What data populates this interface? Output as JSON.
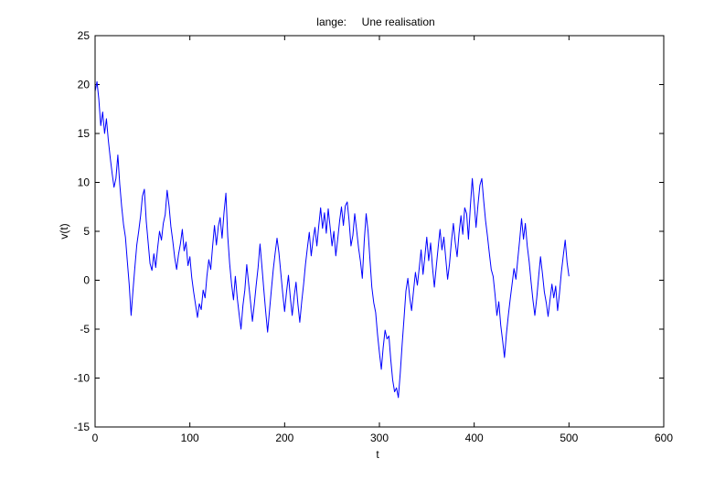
{
  "chart_data": {
    "type": "line",
    "title": "lange:     Une realisation",
    "xlabel": "t",
    "ylabel": "v(t)",
    "xlim": [
      0,
      600
    ],
    "ylim": [
      -15,
      25
    ],
    "xticks": [
      0,
      100,
      200,
      300,
      400,
      500,
      600
    ],
    "yticks": [
      -15,
      -10,
      -5,
      0,
      5,
      10,
      15,
      20,
      25
    ],
    "grid": false,
    "legend": "none",
    "line_color": "#0000ff",
    "series": [
      {
        "name": "",
        "points": [
          [
            0,
            19.3
          ],
          [
            2,
            20.3
          ],
          [
            4,
            18.5
          ],
          [
            6,
            15.8
          ],
          [
            8,
            17.2
          ],
          [
            10,
            15.0
          ],
          [
            12,
            16.5
          ],
          [
            14,
            14.3
          ],
          [
            16,
            12.5
          ],
          [
            18,
            10.9
          ],
          [
            20,
            9.5
          ],
          [
            22,
            10.4
          ],
          [
            24,
            12.8
          ],
          [
            26,
            9.8
          ],
          [
            28,
            7.6
          ],
          [
            30,
            5.7
          ],
          [
            32,
            4.4
          ],
          [
            34,
            2.0
          ],
          [
            36,
            -0.4
          ],
          [
            38,
            -3.6
          ],
          [
            40,
            -1.0
          ],
          [
            42,
            1.3
          ],
          [
            44,
            3.6
          ],
          [
            46,
            5.0
          ],
          [
            48,
            6.6
          ],
          [
            50,
            8.6
          ],
          [
            52,
            9.3
          ],
          [
            54,
            6.0
          ],
          [
            56,
            3.8
          ],
          [
            58,
            1.7
          ],
          [
            60,
            1.0
          ],
          [
            62,
            2.7
          ],
          [
            64,
            1.3
          ],
          [
            66,
            3.3
          ],
          [
            68,
            5.0
          ],
          [
            70,
            4.1
          ],
          [
            72,
            5.8
          ],
          [
            74,
            6.7
          ],
          [
            76,
            9.2
          ],
          [
            78,
            7.6
          ],
          [
            80,
            5.5
          ],
          [
            82,
            4.0
          ],
          [
            84,
            2.3
          ],
          [
            86,
            1.1
          ],
          [
            88,
            2.6
          ],
          [
            90,
            3.7
          ],
          [
            92,
            5.2
          ],
          [
            94,
            3.0
          ],
          [
            96,
            3.9
          ],
          [
            98,
            1.5
          ],
          [
            100,
            2.4
          ],
          [
            102,
            0.3
          ],
          [
            104,
            -1.2
          ],
          [
            106,
            -2.5
          ],
          [
            108,
            -3.8
          ],
          [
            110,
            -2.4
          ],
          [
            112,
            -3.0
          ],
          [
            114,
            -1.0
          ],
          [
            116,
            -1.8
          ],
          [
            118,
            0.4
          ],
          [
            120,
            2.1
          ],
          [
            122,
            1.1
          ],
          [
            124,
            3.4
          ],
          [
            126,
            5.6
          ],
          [
            128,
            3.6
          ],
          [
            130,
            5.5
          ],
          [
            132,
            6.4
          ],
          [
            134,
            4.3
          ],
          [
            136,
            6.9
          ],
          [
            138,
            8.9
          ],
          [
            140,
            4.5
          ],
          [
            142,
            1.7
          ],
          [
            144,
            -0.4
          ],
          [
            146,
            -2.0
          ],
          [
            148,
            0.4
          ],
          [
            150,
            -1.8
          ],
          [
            152,
            -3.5
          ],
          [
            154,
            -5.0
          ],
          [
            156,
            -2.6
          ],
          [
            158,
            -1.0
          ],
          [
            160,
            1.6
          ],
          [
            162,
            -0.3
          ],
          [
            164,
            -2.2
          ],
          [
            166,
            -4.2
          ],
          [
            168,
            -2.4
          ],
          [
            170,
            -0.5
          ],
          [
            172,
            1.3
          ],
          [
            174,
            3.7
          ],
          [
            176,
            1.4
          ],
          [
            178,
            -0.9
          ],
          [
            180,
            -3.2
          ],
          [
            182,
            -5.3
          ],
          [
            184,
            -3.2
          ],
          [
            186,
            -1.0
          ],
          [
            188,
            1.1
          ],
          [
            190,
            2.8
          ],
          [
            192,
            4.3
          ],
          [
            194,
            2.8
          ],
          [
            196,
            0.7
          ],
          [
            198,
            -1.4
          ],
          [
            200,
            -3.2
          ],
          [
            202,
            -1.2
          ],
          [
            204,
            0.5
          ],
          [
            206,
            -1.8
          ],
          [
            208,
            -3.6
          ],
          [
            210,
            -1.7
          ],
          [
            212,
            -0.2
          ],
          [
            214,
            -2.4
          ],
          [
            216,
            -4.3
          ],
          [
            218,
            -2.2
          ],
          [
            220,
            -0.4
          ],
          [
            222,
            1.6
          ],
          [
            224,
            3.3
          ],
          [
            226,
            4.9
          ],
          [
            228,
            2.5
          ],
          [
            230,
            4.1
          ],
          [
            232,
            5.4
          ],
          [
            234,
            3.5
          ],
          [
            236,
            5.6
          ],
          [
            238,
            7.4
          ],
          [
            240,
            5.3
          ],
          [
            242,
            6.9
          ],
          [
            244,
            4.8
          ],
          [
            246,
            7.3
          ],
          [
            248,
            5.4
          ],
          [
            250,
            3.5
          ],
          [
            252,
            5.0
          ],
          [
            254,
            2.5
          ],
          [
            256,
            4.2
          ],
          [
            258,
            6.1
          ],
          [
            260,
            7.5
          ],
          [
            262,
            5.6
          ],
          [
            264,
            7.6
          ],
          [
            266,
            8.0
          ],
          [
            268,
            6.1
          ],
          [
            270,
            3.5
          ],
          [
            272,
            4.6
          ],
          [
            274,
            6.8
          ],
          [
            276,
            5.1
          ],
          [
            278,
            3.3
          ],
          [
            280,
            1.9
          ],
          [
            282,
            0.2
          ],
          [
            284,
            4.0
          ],
          [
            286,
            6.8
          ],
          [
            288,
            5.0
          ],
          [
            290,
            2.2
          ],
          [
            292,
            -0.7
          ],
          [
            294,
            -2.3
          ],
          [
            296,
            -3.3
          ],
          [
            298,
            -5.5
          ],
          [
            300,
            -7.4
          ],
          [
            302,
            -9.1
          ],
          [
            304,
            -6.9
          ],
          [
            306,
            -5.1
          ],
          [
            308,
            -6.0
          ],
          [
            310,
            -5.7
          ],
          [
            312,
            -8.1
          ],
          [
            314,
            -10.2
          ],
          [
            316,
            -11.4
          ],
          [
            318,
            -11.0
          ],
          [
            320,
            -12.0
          ],
          [
            322,
            -9.5
          ],
          [
            324,
            -6.5
          ],
          [
            326,
            -3.8
          ],
          [
            328,
            -1.1
          ],
          [
            330,
            0.2
          ],
          [
            332,
            -1.8
          ],
          [
            334,
            -3.1
          ],
          [
            336,
            -1.1
          ],
          [
            338,
            0.8
          ],
          [
            340,
            -0.5
          ],
          [
            342,
            1.2
          ],
          [
            344,
            3.1
          ],
          [
            346,
            0.6
          ],
          [
            348,
            2.5
          ],
          [
            350,
            4.4
          ],
          [
            352,
            2.0
          ],
          [
            354,
            3.8
          ],
          [
            356,
            1.3
          ],
          [
            358,
            -0.7
          ],
          [
            360,
            1.4
          ],
          [
            362,
            3.4
          ],
          [
            364,
            5.2
          ],
          [
            366,
            3.1
          ],
          [
            368,
            4.4
          ],
          [
            370,
            2.2
          ],
          [
            372,
            0.1
          ],
          [
            374,
            1.7
          ],
          [
            376,
            4.0
          ],
          [
            378,
            5.8
          ],
          [
            380,
            3.9
          ],
          [
            382,
            2.4
          ],
          [
            384,
            4.8
          ],
          [
            386,
            6.6
          ],
          [
            388,
            4.7
          ],
          [
            390,
            7.4
          ],
          [
            392,
            6.8
          ],
          [
            394,
            4.2
          ],
          [
            396,
            7.6
          ],
          [
            398,
            10.4
          ],
          [
            400,
            7.9
          ],
          [
            402,
            5.4
          ],
          [
            404,
            7.7
          ],
          [
            406,
            9.7
          ],
          [
            408,
            10.4
          ],
          [
            410,
            8.2
          ],
          [
            412,
            6.1
          ],
          [
            414,
            4.5
          ],
          [
            416,
            2.7
          ],
          [
            418,
            1.1
          ],
          [
            420,
            0.4
          ],
          [
            422,
            -1.5
          ],
          [
            424,
            -3.6
          ],
          [
            426,
            -2.2
          ],
          [
            428,
            -4.6
          ],
          [
            430,
            -6.2
          ],
          [
            432,
            -7.9
          ],
          [
            434,
            -5.5
          ],
          [
            436,
            -3.6
          ],
          [
            438,
            -1.9
          ],
          [
            440,
            -0.4
          ],
          [
            442,
            1.2
          ],
          [
            444,
            0.1
          ],
          [
            446,
            2.2
          ],
          [
            448,
            4.1
          ],
          [
            450,
            6.3
          ],
          [
            452,
            4.2
          ],
          [
            454,
            5.8
          ],
          [
            456,
            3.5
          ],
          [
            458,
            1.9
          ],
          [
            460,
            -0.2
          ],
          [
            462,
            -2.0
          ],
          [
            464,
            -3.6
          ],
          [
            466,
            -1.8
          ],
          [
            468,
            0.4
          ],
          [
            470,
            2.4
          ],
          [
            472,
            0.7
          ],
          [
            474,
            -1.2
          ],
          [
            476,
            -2.3
          ],
          [
            478,
            -3.7
          ],
          [
            480,
            -2.0
          ],
          [
            482,
            -0.4
          ],
          [
            484,
            -1.8
          ],
          [
            486,
            -0.6
          ],
          [
            488,
            -3.1
          ],
          [
            490,
            -1.3
          ],
          [
            492,
            0.8
          ],
          [
            494,
            2.5
          ],
          [
            496,
            4.1
          ],
          [
            498,
            1.8
          ],
          [
            500,
            0.4
          ]
        ]
      }
    ]
  }
}
